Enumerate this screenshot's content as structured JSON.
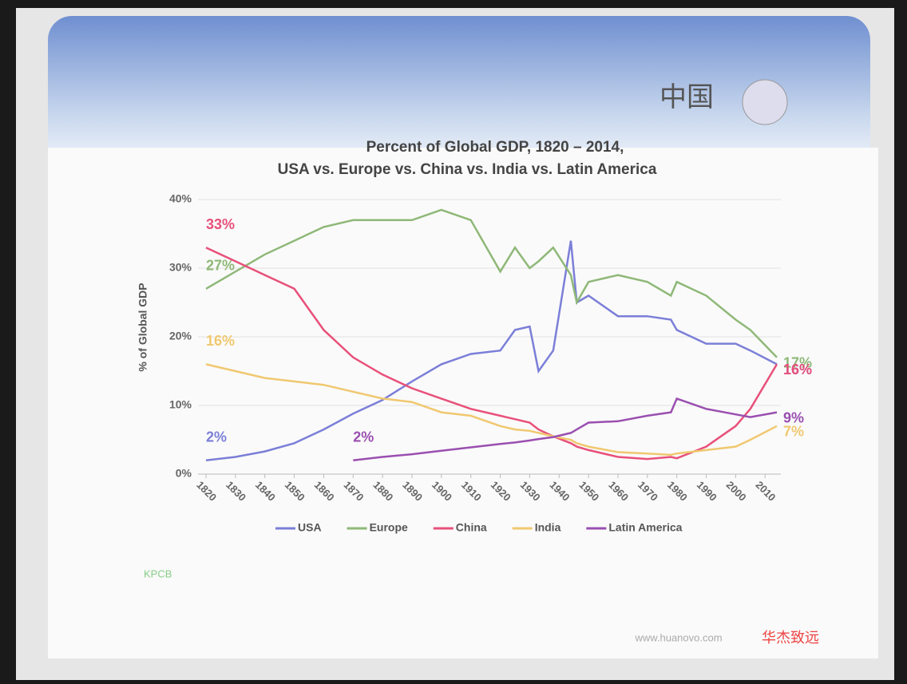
{
  "chart_data": {
    "type": "line",
    "title": "Percent of Global GDP, 1820 – 2014,",
    "subtitle": "USA vs. Europe vs. China vs. India vs. Latin America",
    "y_label": "% of Global GDP",
    "x": [
      1820,
      1830,
      1840,
      1850,
      1860,
      1870,
      1880,
      1890,
      1900,
      1910,
      1920,
      1925,
      1930,
      1933,
      1938,
      1944,
      1946,
      1950,
      1960,
      1970,
      1978,
      1980,
      1990,
      2000,
      2005,
      2014
    ],
    "series": [
      {
        "name": "USA",
        "color": "#7b7fd8",
        "values": [
          2,
          2.5,
          3.3,
          4.5,
          6.5,
          8.8,
          10.8,
          13.5,
          16,
          17.5,
          18,
          21,
          21.5,
          15,
          18,
          34,
          25,
          26,
          23,
          23,
          22.5,
          21,
          19,
          19,
          18,
          16
        ],
        "value_labels": [
          "2%",
          null,
          null,
          null,
          null,
          null,
          null,
          null,
          null,
          null,
          null,
          null,
          null,
          null,
          null,
          null,
          null,
          null,
          null,
          null,
          null,
          null,
          null,
          null,
          null,
          "16%"
        ]
      },
      {
        "name": "Europe",
        "color": "#8fb878",
        "values": [
          27,
          29.5,
          32,
          34,
          36,
          37,
          37,
          37,
          38.5,
          37,
          29.5,
          33,
          30,
          31,
          33,
          29,
          25,
          28,
          29,
          28,
          26,
          28,
          26,
          22.5,
          21,
          17
        ],
        "value_labels": [
          "27%",
          null,
          null,
          null,
          null,
          null,
          null,
          null,
          null,
          null,
          null,
          null,
          null,
          null,
          null,
          null,
          null,
          null,
          null,
          null,
          null,
          null,
          null,
          null,
          null,
          "17%"
        ]
      },
      {
        "name": "China",
        "color": "#e8507a",
        "values": [
          33,
          31,
          29,
          27,
          21,
          17,
          14.5,
          12.5,
          11,
          9.5,
          8.5,
          8,
          7.5,
          6.5,
          5.5,
          4.5,
          4,
          3.5,
          2.5,
          2.2,
          2.5,
          2.3,
          4,
          7,
          9.5,
          16
        ],
        "value_labels": [
          "33%",
          null,
          null,
          null,
          null,
          null,
          null,
          null,
          null,
          null,
          null,
          null,
          null,
          null,
          null,
          null,
          null,
          null,
          null,
          null,
          null,
          null,
          null,
          null,
          null,
          "16%"
        ]
      },
      {
        "name": "India",
        "color": "#f0c870",
        "values": [
          16,
          15,
          14,
          13.5,
          13,
          12,
          11,
          10.5,
          9,
          8.5,
          7,
          6.5,
          6.3,
          6,
          5.5,
          5,
          4.5,
          4,
          3.2,
          3,
          2.8,
          3,
          3.5,
          4,
          5,
          7
        ],
        "value_labels": [
          "16%",
          null,
          null,
          null,
          null,
          null,
          null,
          null,
          null,
          null,
          null,
          null,
          null,
          null,
          null,
          null,
          null,
          null,
          null,
          null,
          null,
          null,
          null,
          null,
          null,
          "7%"
        ]
      },
      {
        "name": "Latin America",
        "color": "#9a4fb0",
        "values": [
          null,
          null,
          null,
          null,
          null,
          2,
          2.5,
          2.9,
          3.4,
          3.9,
          4.4,
          4.6,
          4.9,
          5.1,
          5.4,
          6,
          6.5,
          7.5,
          7.7,
          8.5,
          9,
          11,
          9.5,
          8.7,
          8.3,
          9
        ],
        "value_labels": [
          null,
          null,
          null,
          null,
          null,
          "2%",
          null,
          null,
          null,
          null,
          null,
          null,
          null,
          null,
          null,
          null,
          null,
          null,
          null,
          null,
          null,
          null,
          null,
          null,
          null,
          "9%"
        ]
      }
    ],
    "xlim": [
      1820,
      2014
    ],
    "ylim": [
      0,
      40
    ],
    "xticks": [
      1820,
      1830,
      1840,
      1850,
      1860,
      1870,
      1880,
      1890,
      1900,
      1910,
      1920,
      1930,
      1940,
      1950,
      1960,
      1970,
      1980,
      1990,
      2000,
      2010
    ],
    "yticks": [
      {
        "value": 0,
        "label": "0%"
      },
      {
        "value": 10,
        "label": "10%"
      },
      {
        "value": 20,
        "label": "20%"
      },
      {
        "value": 30,
        "label": "30%"
      },
      {
        "value": 40,
        "label": "40%"
      }
    ],
    "grid": true
  },
  "slide": {
    "header": "中国",
    "logo": "KPCB",
    "website": "www.huanovo.com",
    "brand": "华杰致远"
  }
}
